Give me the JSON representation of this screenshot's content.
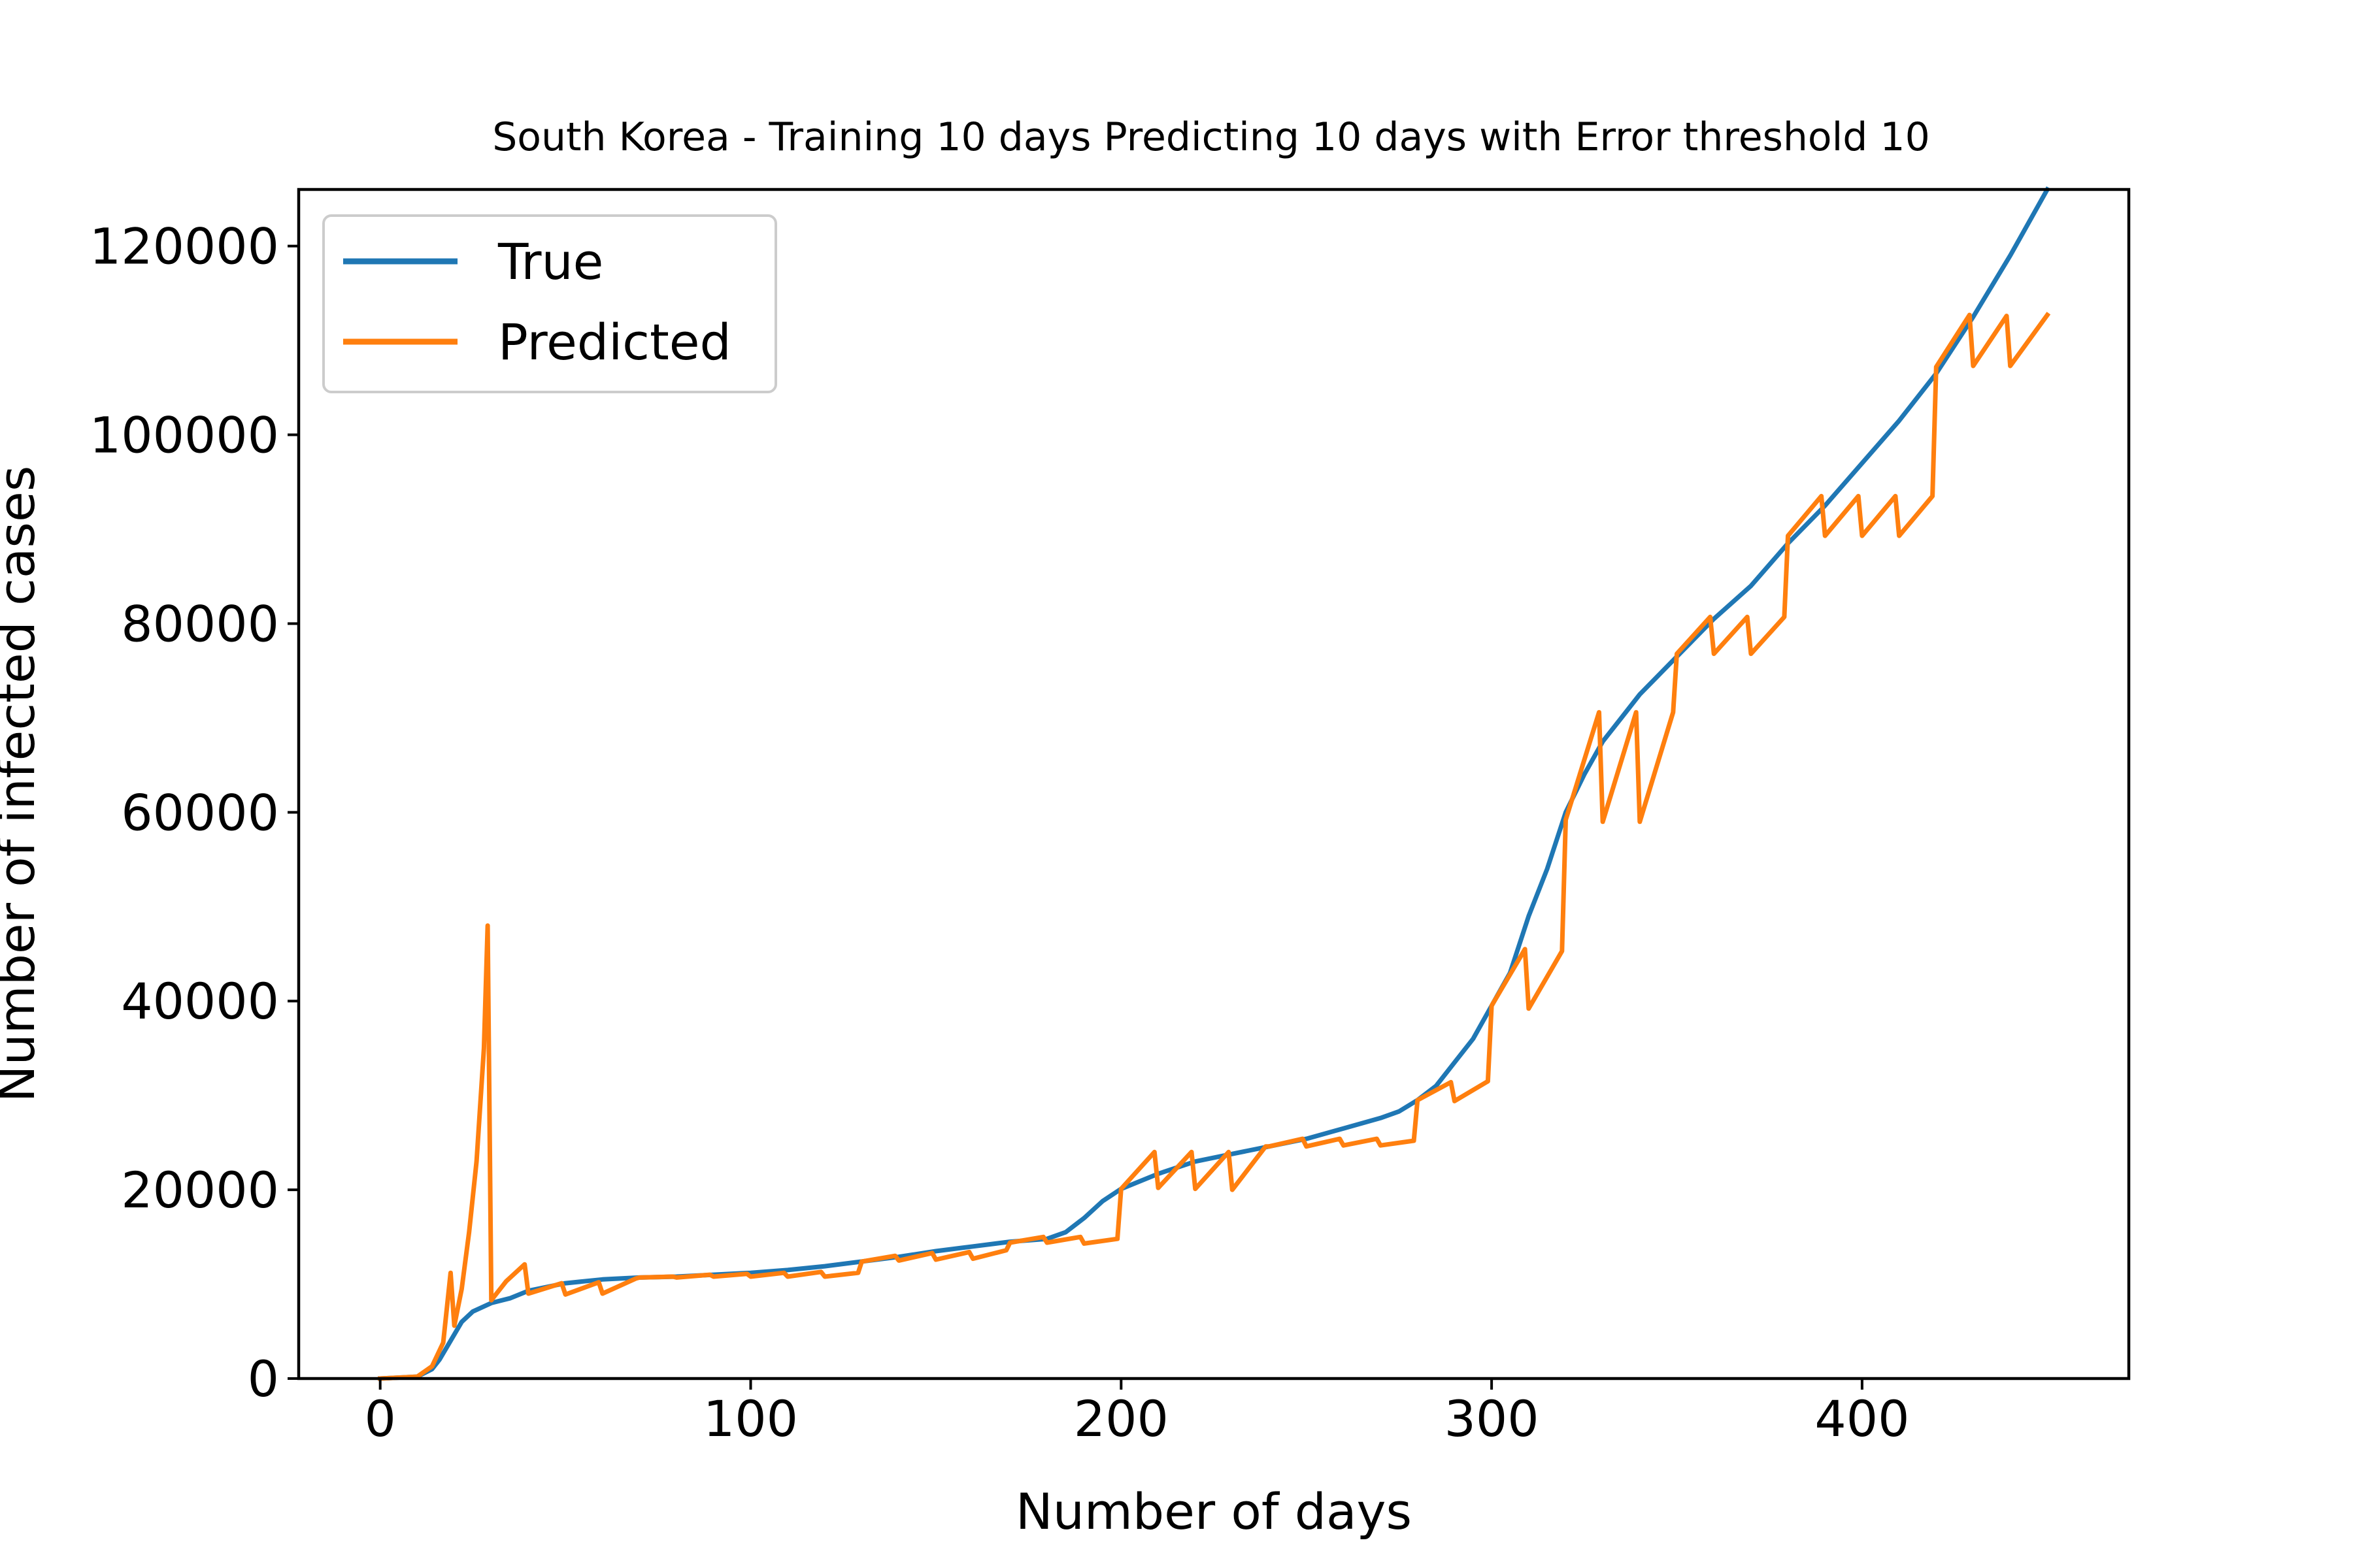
{
  "chart_data": {
    "type": "line",
    "title": "South Korea - Training 10 days Predicting 10 days with Error threshold 10",
    "xlabel": "Number of days",
    "ylabel": "Number of infected cases",
    "xlim": [
      -22,
      472
    ],
    "ylim": [
      0,
      126000
    ],
    "xticks": [
      0,
      100,
      200,
      300,
      400
    ],
    "yticks": [
      0,
      20000,
      40000,
      60000,
      80000,
      100000,
      120000
    ],
    "grid": false,
    "legend_position": "top-left",
    "series": [
      {
        "name": "True",
        "color": "#1f77b4",
        "points": [
          [
            0,
            0
          ],
          [
            10,
            200
          ],
          [
            14,
            1000
          ],
          [
            16,
            2000
          ],
          [
            19,
            4000
          ],
          [
            22,
            6000
          ],
          [
            25,
            7100
          ],
          [
            30,
            8000
          ],
          [
            35,
            8500
          ],
          [
            40,
            9300
          ],
          [
            50,
            10100
          ],
          [
            60,
            10500
          ],
          [
            70,
            10700
          ],
          [
            80,
            10800
          ],
          [
            90,
            11000
          ],
          [
            100,
            11200
          ],
          [
            110,
            11500
          ],
          [
            120,
            11900
          ],
          [
            130,
            12400
          ],
          [
            140,
            12900
          ],
          [
            150,
            13500
          ],
          [
            160,
            14000
          ],
          [
            170,
            14500
          ],
          [
            180,
            14800
          ],
          [
            185,
            15500
          ],
          [
            190,
            17000
          ],
          [
            195,
            18800
          ],
          [
            200,
            20100
          ],
          [
            210,
            21700
          ],
          [
            220,
            23000
          ],
          [
            230,
            23800
          ],
          [
            240,
            24600
          ],
          [
            250,
            25400
          ],
          [
            260,
            26500
          ],
          [
            270,
            27600
          ],
          [
            275,
            28300
          ],
          [
            280,
            29500
          ],
          [
            285,
            31000
          ],
          [
            290,
            33500
          ],
          [
            295,
            36000
          ],
          [
            300,
            39500
          ],
          [
            305,
            43000
          ],
          [
            310,
            49000
          ],
          [
            315,
            54000
          ],
          [
            320,
            60000
          ],
          [
            325,
            64000
          ],
          [
            330,
            67500
          ],
          [
            335,
            70000
          ],
          [
            340,
            72500
          ],
          [
            350,
            76500
          ],
          [
            360,
            80500
          ],
          [
            370,
            84000
          ],
          [
            380,
            88500
          ],
          [
            390,
            92500
          ],
          [
            400,
            97000
          ],
          [
            410,
            101500
          ],
          [
            420,
            106500
          ],
          [
            430,
            112500
          ],
          [
            440,
            119000
          ],
          [
            450,
            126000
          ]
        ]
      },
      {
        "name": "Predicted",
        "color": "#ff7f0e",
        "points": [
          [
            0,
            0
          ],
          [
            10,
            200
          ],
          [
            14,
            1300
          ],
          [
            17,
            3800
          ],
          [
            19,
            11200
          ],
          [
            20,
            5600
          ],
          [
            22,
            9500
          ],
          [
            24,
            15500
          ],
          [
            26,
            23000
          ],
          [
            28,
            35000
          ],
          [
            29,
            48000
          ],
          [
            30,
            8300
          ],
          [
            34,
            10300
          ],
          [
            39,
            12100
          ],
          [
            40,
            9000
          ],
          [
            49,
            10100
          ],
          [
            50,
            8900
          ],
          [
            59,
            10200
          ],
          [
            60,
            9000
          ],
          [
            69,
            10600
          ],
          [
            70,
            10700
          ],
          [
            79,
            10800
          ],
          [
            80,
            10700
          ],
          [
            89,
            11000
          ],
          [
            90,
            10800
          ],
          [
            99,
            11100
          ],
          [
            100,
            10800
          ],
          [
            109,
            11200
          ],
          [
            110,
            10800
          ],
          [
            119,
            11300
          ],
          [
            120,
            10800
          ],
          [
            129,
            11200
          ],
          [
            130,
            12400
          ],
          [
            139,
            13000
          ],
          [
            140,
            12500
          ],
          [
            149,
            13300
          ],
          [
            150,
            12600
          ],
          [
            159,
            13400
          ],
          [
            160,
            12700
          ],
          [
            169,
            13600
          ],
          [
            170,
            14400
          ],
          [
            179,
            15000
          ],
          [
            180,
            14400
          ],
          [
            189,
            15000
          ],
          [
            190,
            14300
          ],
          [
            199,
            14800
          ],
          [
            200,
            20100
          ],
          [
            209,
            24000
          ],
          [
            210,
            20200
          ],
          [
            219,
            24000
          ],
          [
            220,
            20100
          ],
          [
            229,
            24000
          ],
          [
            230,
            20000
          ],
          [
            239,
            24600
          ],
          [
            240,
            24600
          ],
          [
            249,
            25400
          ],
          [
            250,
            24600
          ],
          [
            259,
            25400
          ],
          [
            260,
            24700
          ],
          [
            269,
            25400
          ],
          [
            270,
            24700
          ],
          [
            279,
            25200
          ],
          [
            280,
            29500
          ],
          [
            289,
            31400
          ],
          [
            290,
            29400
          ],
          [
            299,
            31500
          ],
          [
            300,
            39500
          ],
          [
            309,
            45500
          ],
          [
            310,
            39200
          ],
          [
            319,
            45300
          ],
          [
            320,
            59200
          ],
          [
            329,
            70600
          ],
          [
            330,
            59000
          ],
          [
            339,
            70600
          ],
          [
            340,
            59000
          ],
          [
            349,
            70600
          ],
          [
            350,
            76800
          ],
          [
            359,
            80700
          ],
          [
            360,
            76800
          ],
          [
            369,
            80700
          ],
          [
            370,
            76800
          ],
          [
            379,
            80700
          ],
          [
            380,
            89300
          ],
          [
            389,
            93500
          ],
          [
            390,
            89300
          ],
          [
            399,
            93500
          ],
          [
            400,
            89300
          ],
          [
            409,
            93500
          ],
          [
            410,
            89300
          ],
          [
            419,
            93500
          ],
          [
            420,
            107200
          ],
          [
            429,
            112700
          ],
          [
            430,
            107300
          ],
          [
            439,
            112600
          ],
          [
            440,
            107300
          ],
          [
            450,
            112700
          ]
        ]
      }
    ]
  }
}
